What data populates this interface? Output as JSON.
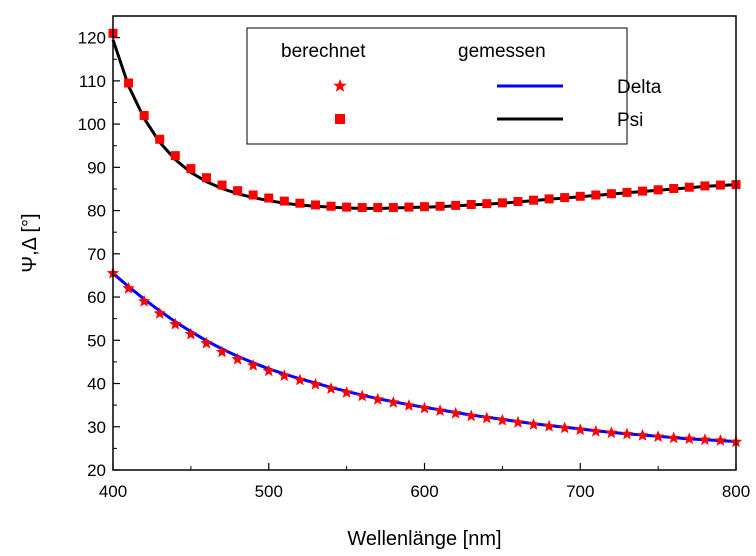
{
  "chart_data": {
    "type": "scatter",
    "xlabel": "Wellenlänge [nm]",
    "ylabel": "Ψ,Δ [°]",
    "xlim": [
      400,
      800
    ],
    "ylim": [
      20,
      125
    ],
    "xticks": [
      400,
      500,
      600,
      700,
      800
    ],
    "yticks": [
      20,
      30,
      40,
      50,
      60,
      70,
      80,
      90,
      100,
      110,
      120
    ],
    "grid": false,
    "legend": {
      "placement": "top-right",
      "col_left_title": "berechnet",
      "col_right_title": "gemessen",
      "rows": [
        "Delta",
        "Psi"
      ]
    },
    "series": [
      {
        "name": "Delta",
        "kind": "berechnet",
        "marker": "star",
        "color": "#ff0000",
        "x": [
          400,
          410,
          420,
          430,
          440,
          450,
          460,
          470,
          480,
          490,
          500,
          510,
          520,
          530,
          540,
          550,
          560,
          570,
          580,
          590,
          600,
          610,
          620,
          630,
          640,
          650,
          660,
          670,
          680,
          690,
          700,
          710,
          720,
          730,
          740,
          750,
          760,
          770,
          780,
          790,
          800
        ],
        "y": [
          65.5,
          62.0,
          59.0,
          56.2,
          53.7,
          51.4,
          49.3,
          47.3,
          45.6,
          44.2,
          42.9,
          41.8,
          40.8,
          39.8,
          38.8,
          37.9,
          37.1,
          36.3,
          35.6,
          34.9,
          34.3,
          33.7,
          33.1,
          32.5,
          32.0,
          31.5,
          31.0,
          30.5,
          30.1,
          29.7,
          29.3,
          28.9,
          28.6,
          28.3,
          28.0,
          27.7,
          27.4,
          27.2,
          27.0,
          26.8,
          26.5
        ]
      },
      {
        "name": "Psi",
        "kind": "berechnet",
        "marker": "square",
        "color": "#ff0000",
        "x": [
          400,
          410,
          420,
          430,
          440,
          450,
          460,
          470,
          480,
          490,
          500,
          510,
          520,
          530,
          540,
          550,
          560,
          570,
          580,
          590,
          600,
          610,
          620,
          630,
          640,
          650,
          660,
          670,
          680,
          690,
          700,
          710,
          720,
          730,
          740,
          750,
          760,
          770,
          780,
          790,
          800
        ],
        "y": [
          121.0,
          109.5,
          102.0,
          96.5,
          92.7,
          89.7,
          87.6,
          85.9,
          84.6,
          83.6,
          82.9,
          82.2,
          81.7,
          81.3,
          81.0,
          80.8,
          80.7,
          80.7,
          80.7,
          80.8,
          80.9,
          81.0,
          81.2,
          81.4,
          81.6,
          81.8,
          82.1,
          82.4,
          82.7,
          83.0,
          83.3,
          83.6,
          83.9,
          84.2,
          84.5,
          84.8,
          85.1,
          85.4,
          85.7,
          85.9,
          86.0
        ]
      },
      {
        "name": "Delta",
        "kind": "gemessen",
        "line": true,
        "color": "#0000ff",
        "x": [
          400,
          410,
          420,
          430,
          440,
          450,
          460,
          470,
          480,
          490,
          500,
          510,
          520,
          530,
          540,
          550,
          560,
          570,
          580,
          590,
          600,
          610,
          620,
          630,
          640,
          650,
          660,
          670,
          680,
          690,
          700,
          710,
          720,
          730,
          740,
          750,
          760,
          770,
          780,
          790,
          800
        ],
        "y": [
          65.5,
          62.4,
          59.5,
          56.8,
          54.3,
          52.0,
          49.9,
          48.0,
          46.3,
          44.8,
          43.4,
          42.2,
          41.1,
          40.1,
          39.1,
          38.2,
          37.3,
          36.5,
          35.8,
          35.1,
          34.5,
          33.9,
          33.3,
          32.7,
          32.2,
          31.7,
          31.2,
          30.7,
          30.3,
          29.9,
          29.5,
          29.1,
          28.7,
          28.4,
          28.1,
          27.8,
          27.5,
          27.2,
          27.0,
          26.8,
          26.6
        ]
      },
      {
        "name": "Psi",
        "kind": "gemessen",
        "line": true,
        "color": "#000000",
        "x": [
          400,
          410,
          420,
          430,
          440,
          450,
          460,
          470,
          480,
          490,
          500,
          510,
          520,
          530,
          540,
          550,
          560,
          570,
          580,
          590,
          600,
          610,
          620,
          630,
          640,
          650,
          660,
          670,
          680,
          690,
          700,
          710,
          720,
          730,
          740,
          750,
          760,
          770,
          780,
          790,
          800
        ],
        "y": [
          119.5,
          108.8,
          101.3,
          95.8,
          91.8,
          88.8,
          86.7,
          85.1,
          83.9,
          83.0,
          82.3,
          81.7,
          81.3,
          81.0,
          80.8,
          80.6,
          80.5,
          80.5,
          80.6,
          80.7,
          80.8,
          80.9,
          81.1,
          81.3,
          81.5,
          81.7,
          82.0,
          82.3,
          82.6,
          82.9,
          83.2,
          83.5,
          83.8,
          84.1,
          84.4,
          84.7,
          85.0,
          85.3,
          85.6,
          85.8,
          86.0
        ]
      }
    ]
  }
}
